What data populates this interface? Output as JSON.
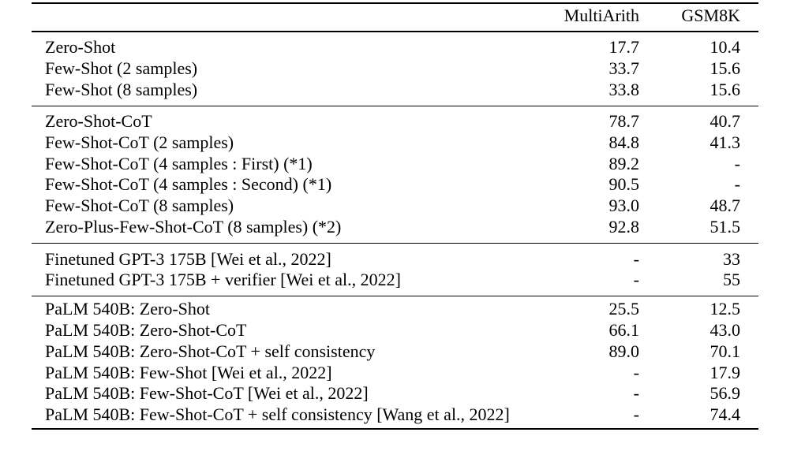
{
  "page": {
    "background": "#ffffff",
    "text_color": "#000000"
  },
  "table": {
    "columns": [
      "",
      "MultiArith",
      "GSM8K"
    ],
    "sections": [
      {
        "rows": [
          {
            "method": "Zero-Shot",
            "suffix": "",
            "multiarith": "17.7",
            "gsm8k": "10.4",
            "bold": true
          },
          {
            "method": "Few-Shot (2 samples)",
            "suffix": "",
            "multiarith": "33.7",
            "gsm8k": "15.6",
            "bold": false
          },
          {
            "method": "Few-Shot (8 samples)",
            "suffix": "",
            "multiarith": "33.8",
            "gsm8k": "15.6",
            "bold": false
          }
        ]
      },
      {
        "rows": [
          {
            "method": "Zero-Shot-CoT",
            "suffix": "",
            "multiarith": "78.7",
            "gsm8k": "40.7",
            "bold": true
          },
          {
            "method": "Few-Shot-CoT (2 samples)",
            "suffix": "",
            "multiarith": "84.8",
            "gsm8k": "41.3",
            "bold": false
          },
          {
            "method": "Few-Shot-CoT (4 samples : First) (*1)",
            "suffix": "",
            "multiarith": "89.2",
            "gsm8k": "-",
            "bold": false
          },
          {
            "method": "Few-Shot-CoT (4 samples : Second) (*1)",
            "suffix": "",
            "multiarith": "90.5",
            "gsm8k": "-",
            "bold": false
          },
          {
            "method": "Few-Shot-CoT (8 samples)",
            "suffix": "",
            "multiarith": "93.0",
            "gsm8k": "48.7",
            "bold": false
          },
          {
            "method": "Zero-Plus-Few-Shot-CoT (8 samples)",
            "suffix": " (*2)",
            "multiarith": "92.8",
            "gsm8k": "51.5",
            "bold": true
          }
        ]
      },
      {
        "rows": [
          {
            "method": "Finetuned GPT-3 175B [Wei et al., 2022]",
            "suffix": "",
            "multiarith": "-",
            "gsm8k": "33",
            "bold": false
          },
          {
            "method": "Finetuned GPT-3 175B + verifier [Wei et al., 2022]",
            "suffix": "",
            "multiarith": "-",
            "gsm8k": "55",
            "bold": false
          }
        ]
      },
      {
        "rows": [
          {
            "method": "PaLM 540B: Zero-Shot",
            "suffix": "",
            "multiarith": "25.5",
            "gsm8k": "12.5",
            "bold": true
          },
          {
            "method": "PaLM 540B: Zero-Shot-CoT",
            "suffix": "",
            "multiarith": "66.1",
            "gsm8k": "43.0",
            "bold": true
          },
          {
            "method": "PaLM 540B: Zero-Shot-CoT + self consistency",
            "suffix": "",
            "multiarith": "89.0",
            "gsm8k": "70.1",
            "bold": true
          },
          {
            "method": "PaLM 540B: Few-Shot [Wei et al., 2022]",
            "suffix": "",
            "multiarith": "-",
            "gsm8k": "17.9",
            "bold": false
          },
          {
            "method": "PaLM 540B: Few-Shot-CoT [Wei et al., 2022]",
            "suffix": "",
            "multiarith": "-",
            "gsm8k": "56.9",
            "bold": false
          },
          {
            "method": "PaLM 540B: Few-Shot-CoT + self consistency [Wang et al., 2022]",
            "suffix": "",
            "multiarith": "-",
            "gsm8k": "74.4",
            "bold": false
          }
        ]
      }
    ]
  }
}
